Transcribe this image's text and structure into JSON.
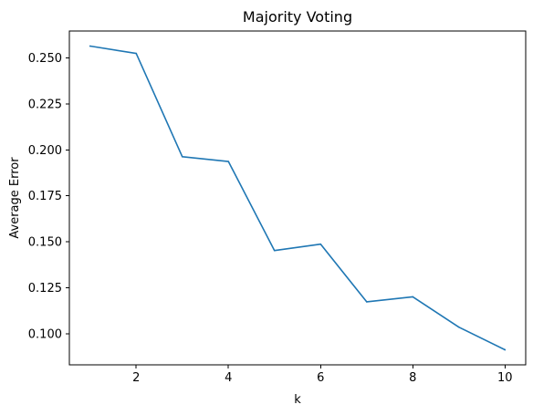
{
  "chart_data": {
    "type": "line",
    "title": "Majority Voting",
    "xlabel": "k",
    "ylabel": "Average Error",
    "x": [
      1,
      2,
      3,
      4,
      5,
      6,
      7,
      8,
      9,
      10
    ],
    "series": [
      {
        "values": [
          0.2565,
          0.2525,
          0.1963,
          0.1937,
          0.1452,
          0.1487,
          0.1173,
          0.12,
          0.1035,
          0.0912
        ],
        "color": "#1f77b4"
      }
    ],
    "xlim": [
      0.55,
      10.45
    ],
    "ylim": [
      0.083,
      0.2647
    ],
    "xticks": [
      2,
      4,
      6,
      8,
      10
    ],
    "xtick_labels": [
      "2",
      "4",
      "6",
      "8",
      "10"
    ],
    "yticks": [
      0.1,
      0.125,
      0.15,
      0.175,
      0.2,
      0.225,
      0.25
    ],
    "ytick_labels": [
      "0.100",
      "0.125",
      "0.150",
      "0.175",
      "0.200",
      "0.225",
      "0.250"
    ],
    "grid": false,
    "legend": "none"
  }
}
